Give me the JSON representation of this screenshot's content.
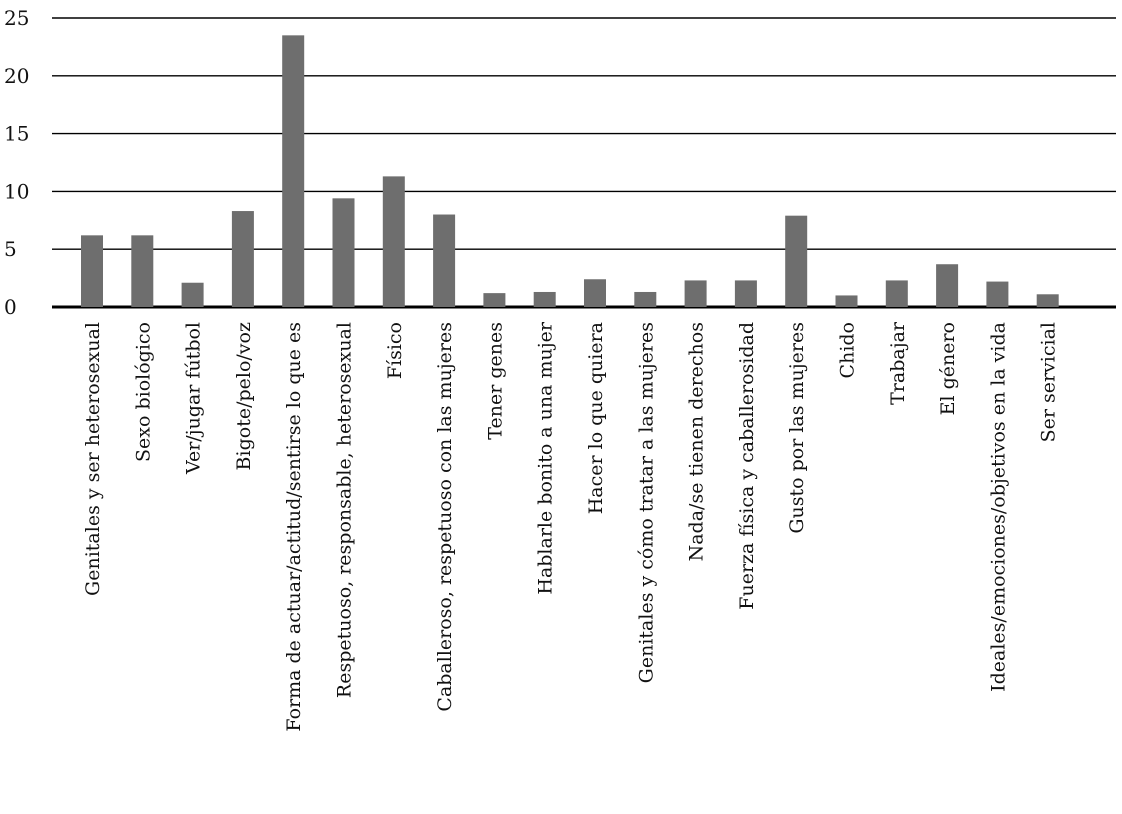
{
  "chart_data": {
    "type": "bar",
    "title": "",
    "xlabel": "",
    "ylabel": "",
    "ylim": [
      0,
      25
    ],
    "yticks": [
      0,
      5,
      10,
      15,
      20,
      25
    ],
    "grid": true,
    "legend": "none",
    "bar_color": "#6e6e6e",
    "categories": [
      "Genitales y ser heterosexual",
      "Sexo biológico",
      "Ver/jugar fútbol",
      "Bigote/pelo/voz",
      "Forma de actuar/actitud/sentirse lo que es",
      "Respetuoso, responsable, heterosexual",
      "Físico",
      "Caballeroso, respetuoso con las mujeres",
      "Tener genes",
      "Hablarle bonito a una mujer",
      "Hacer lo que quiera",
      "Genitales y cómo tratar a las mujeres",
      "Nada/se tienen derechos",
      "Fuerza física y caballerosidad",
      "Gusto por las mujeres",
      "Chido",
      "Trabajar",
      "El género",
      "Ideales/emociones/objetivos en la vida",
      "Ser servicial"
    ],
    "values": [
      6.2,
      6.2,
      2.1,
      8.3,
      23.5,
      9.4,
      11.3,
      8.0,
      1.2,
      1.3,
      2.4,
      1.3,
      2.3,
      2.3,
      7.9,
      1.0,
      2.3,
      3.7,
      2.2,
      1.1
    ]
  }
}
